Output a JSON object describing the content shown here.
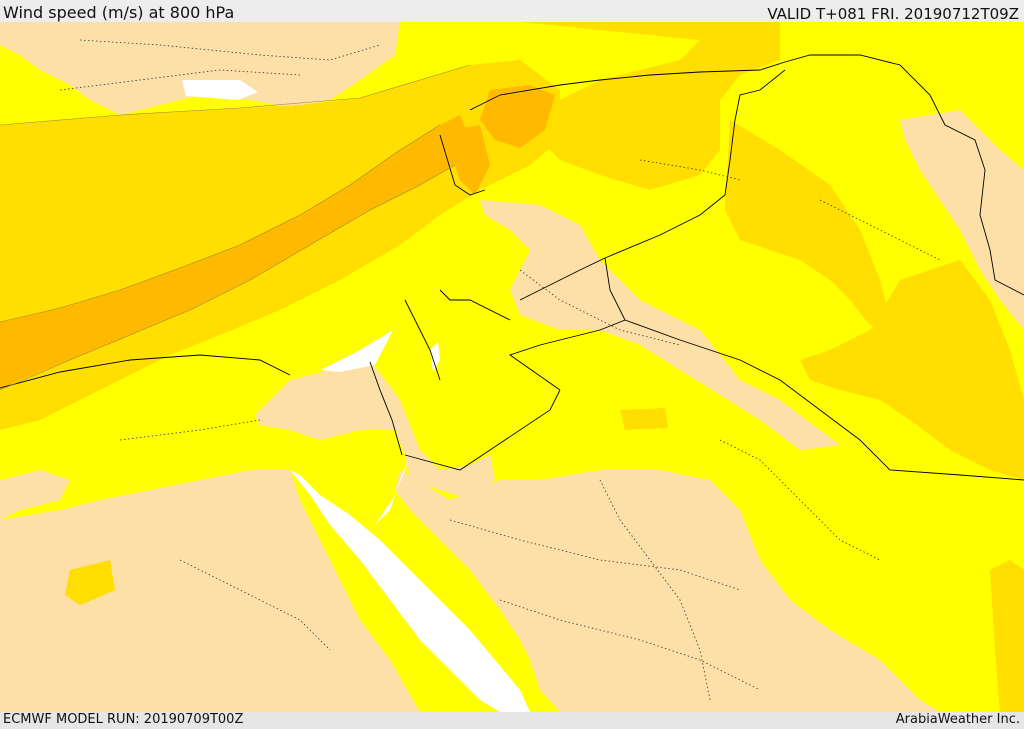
{
  "header": {
    "title": "Wind speed (m/s) at 800 hPa",
    "valid": "VALID T+081 FRI. 20190712T09Z"
  },
  "footer": {
    "model_run": "ECMWF MODEL RUN: 20190709T00Z",
    "credit": "ArabiaWeather Inc."
  },
  "colors": {
    "calm": "#fde0a8",
    "band_1": "#ffff00",
    "band_2": "#ffde00",
    "band_3": "#ffba00",
    "water": "#ffffff",
    "borders": "#000000"
  }
}
